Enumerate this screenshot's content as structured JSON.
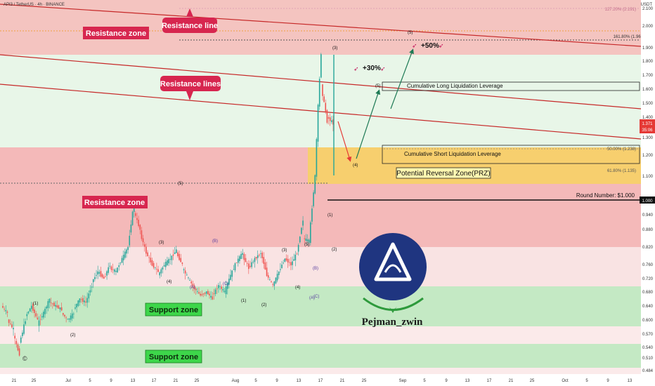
{
  "header": {
    "symbol": "API3 / TetherUS · 4h · BINANCE",
    "currency": "USDT"
  },
  "last_price": {
    "value": "1.371",
    "countdown": "35:06"
  },
  "colors": {
    "bull": "#26a69a",
    "bear": "#ef5350",
    "resistance_fill": "#f2b8b8",
    "support_fill": "#bfe6bf",
    "light_green": "#e6f5e6",
    "light_red": "#f9e2e2",
    "prz_fill": "#f7cf6e",
    "trendline": "#c62828",
    "arrow_up": "#1e7a55",
    "arrow_down": "#e53935",
    "logo_bg": "#1f3580",
    "label_red": "#d7264f",
    "support_label": "#3dd64a"
  },
  "annotations": {
    "resistance_line": "Resistance line",
    "resistance_lines": "Resistance lines",
    "resistance_zone_top": "Resistance zone",
    "resistance_zone_mid": "Resistance zone",
    "support_zone_upper": "Support zone",
    "support_zone_lower": "Support zone",
    "prz": "Potential Reversal Zone(PRZ)",
    "long_liq": "Cumulative Long Liquidation Leverage",
    "short_liq": "Cumulative Short Liquidation Leverage",
    "round_number": "Round Number: $1.000",
    "gain30": "+30%",
    "gain50": "+50%",
    "fib_127": "127.20% (2.191)",
    "fib_161": "161.80% (1.961)",
    "fib_50": "50.00% (1.238)",
    "fib_618": "61.80% (1.135)",
    "author": "Pejman_zwin",
    "copyright": "©"
  },
  "wave_labels": {
    "w3_top": "(3)",
    "w4": "(4)",
    "w5_a": "(5)",
    "w5_b": "(5)",
    "small": [
      "(1)",
      "(2)",
      "(3)",
      "(4)",
      "(5)",
      "(A)",
      "(B)",
      "(C)",
      "(1)",
      "(2)",
      "(3)",
      "(4)",
      "(5)",
      "(A)",
      "(B)",
      "(C)",
      "(1)",
      "(2)"
    ]
  },
  "chart_data": {
    "type": "candlestick",
    "title": "API3 / TetherUS · 4h · BINANCE",
    "y_axis": {
      "min": 0.48,
      "max": 2.22,
      "ticks": [
        "2.100",
        "2.000",
        "1.900",
        "1.800",
        "1.700",
        "1.600",
        "1.500",
        "1.400",
        "1.300",
        "1.200",
        "1.100",
        "1.000",
        "0.940",
        "0.880",
        "0.820",
        "0.760",
        "0.720",
        "0.680",
        "0.640",
        "0.600",
        "0.570",
        "0.540",
        "0.510",
        "0.484"
      ]
    },
    "x_axis": {
      "ticks": [
        "21",
        "25",
        "Jul",
        "5",
        "9",
        "13",
        "17",
        "21",
        "25",
        "Aug",
        "5",
        "9",
        "13",
        "17",
        "21",
        "25",
        "Sep",
        "5",
        "9",
        "13",
        "17",
        "21",
        "25",
        "Oct",
        "5",
        "9",
        "13"
      ]
    },
    "zones": [
      {
        "name": "Resistance zone",
        "from": 1.84,
        "to": 2.22
      },
      {
        "name": "Resistance zone",
        "from": 0.82,
        "to": 1.24
      },
      {
        "name": "Support zone",
        "from": 0.59,
        "to": 0.69
      },
      {
        "name": "Support zone",
        "from": 0.505,
        "to": 0.555
      }
    ],
    "prz": {
      "from": 1.07,
      "to": 1.24
    },
    "round_number": 1.0,
    "fibonacci": [
      {
        "label": "127.20%",
        "value": 2.191
      },
      {
        "label": "161.80%",
        "value": 1.961
      },
      {
        "label": "50.00%",
        "value": 1.238
      },
      {
        "label": "61.80%",
        "value": 1.135
      }
    ],
    "last_price": 1.371,
    "price_path": [
      [
        0.64,
        0.62
      ],
      [
        0.6,
        0.58
      ],
      [
        0.57,
        0.52
      ],
      [
        0.55,
        0.6
      ],
      [
        0.61,
        0.64
      ],
      [
        0.64,
        0.6
      ],
      [
        0.59,
        0.62
      ],
      [
        0.62,
        0.66
      ],
      [
        0.65,
        0.64
      ],
      [
        0.64,
        0.63
      ],
      [
        0.62,
        0.6
      ],
      [
        0.6,
        0.62
      ],
      [
        0.63,
        0.66
      ],
      [
        0.66,
        0.65
      ],
      [
        0.65,
        0.7
      ],
      [
        0.71,
        0.74
      ],
      [
        0.74,
        0.72
      ],
      [
        0.72,
        0.76
      ],
      [
        0.75,
        0.74
      ],
      [
        0.74,
        0.78
      ],
      [
        0.78,
        0.82
      ],
      [
        0.82,
        0.99
      ],
      [
        0.95,
        0.88
      ],
      [
        0.87,
        0.8
      ],
      [
        0.8,
        0.76
      ],
      [
        0.76,
        0.74
      ],
      [
        0.73,
        0.76
      ],
      [
        0.76,
        0.78
      ],
      [
        0.78,
        0.81
      ],
      [
        0.8,
        0.76
      ],
      [
        0.75,
        0.72
      ],
      [
        0.72,
        0.69
      ],
      [
        0.69,
        0.67
      ],
      [
        0.67,
        0.68
      ],
      [
        0.68,
        0.66
      ],
      [
        0.67,
        0.7
      ],
      [
        0.7,
        0.68
      ],
      [
        0.68,
        0.73
      ],
      [
        0.73,
        0.77
      ],
      [
        0.77,
        0.8
      ],
      [
        0.79,
        0.75
      ],
      [
        0.75,
        0.78
      ],
      [
        0.78,
        0.8
      ],
      [
        0.8,
        0.73
      ],
      [
        0.73,
        0.7
      ],
      [
        0.7,
        0.74
      ],
      [
        0.74,
        0.78
      ],
      [
        0.78,
        0.76
      ],
      [
        0.76,
        0.8
      ],
      [
        0.8,
        0.92
      ],
      [
        0.85,
        0.84
      ],
      [
        0.84,
        1.1
      ],
      [
        1.1,
        1.86
      ],
      [
        1.62,
        1.38
      ],
      [
        1.4,
        1.371
      ]
    ]
  }
}
